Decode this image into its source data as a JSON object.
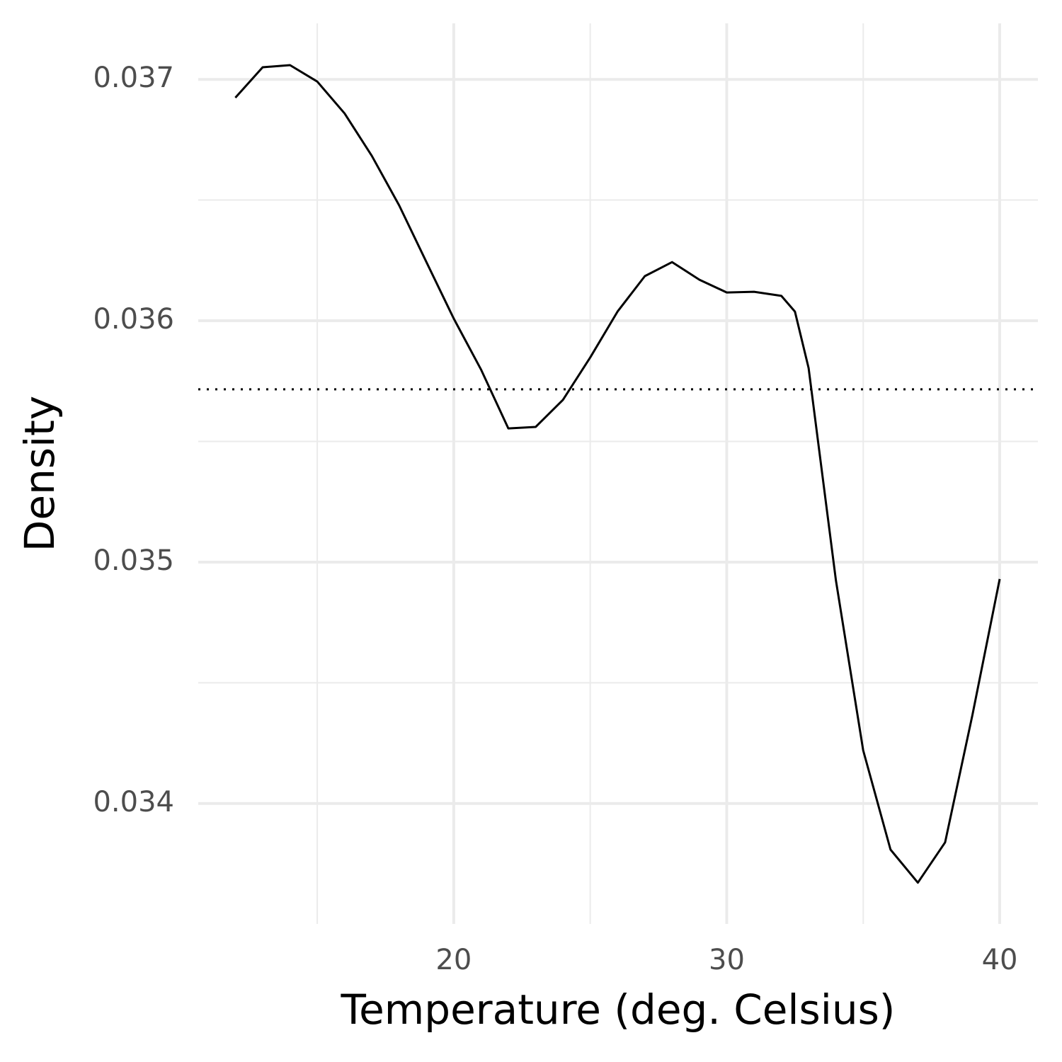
{
  "chart_data": {
    "type": "line",
    "x_label": "Temperature (deg. Celsius)",
    "y_label": "Density",
    "x": [
      12,
      13,
      14,
      15,
      16,
      17,
      18,
      19,
      20,
      21,
      22,
      23,
      24,
      25,
      26,
      27,
      28,
      29,
      30,
      31,
      32,
      32.5,
      33,
      34,
      35,
      36,
      37,
      38,
      39,
      40
    ],
    "series": [
      {
        "color": "#000000",
        "values": [
          0.036924,
          0.03705,
          0.037059,
          0.036991,
          0.036859,
          0.036683,
          0.036478,
          0.036243,
          0.036009,
          0.035798,
          0.035554,
          0.03556,
          0.035672,
          0.035848,
          0.036038,
          0.036185,
          0.036243,
          0.03617,
          0.036117,
          0.03612,
          0.036103,
          0.036038,
          0.035804,
          0.034924,
          0.03422,
          0.033809,
          0.033672,
          0.033839,
          0.034367,
          0.03493
        ]
      }
    ],
    "reference_line": 0.035716,
    "xlim": [
      10.64,
      41.4
    ],
    "ylim": [
      0.033501,
      0.037232
    ],
    "xticks": [
      20,
      30,
      40
    ],
    "yticks": [
      0.034,
      0.035,
      0.036,
      0.037
    ],
    "grid": true
  }
}
